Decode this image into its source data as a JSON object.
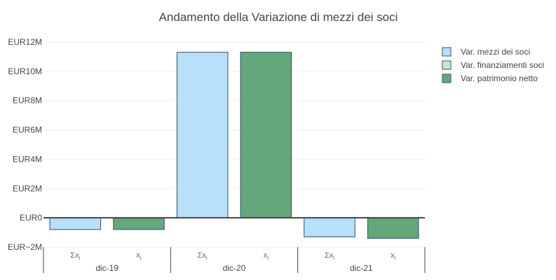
{
  "chart_data": {
    "type": "bar",
    "title": "Andamento della Variazione di mezzi dei soci",
    "ylim": [
      -2000000,
      12000000
    ],
    "yticks": [
      -2000000,
      0,
      2000000,
      4000000,
      6000000,
      8000000,
      10000000,
      12000000
    ],
    "ytick_labels": [
      "EUR−2M",
      "EUR0",
      "EUR2M",
      "EUR4M",
      "EUR6M",
      "EUR8M",
      "EUR10M",
      "EUR12M"
    ],
    "grid": true,
    "legend_position": "top-right",
    "groups": [
      {
        "label": "dic-19",
        "bars": [
          {
            "sub": "Σx",
            "sub_index": "i",
            "value": -800000,
            "series": 0
          },
          {
            "sub": "x",
            "sub_index": "i",
            "value": -800000,
            "series": 2
          }
        ]
      },
      {
        "label": "dic-20",
        "bars": [
          {
            "sub": "Σx",
            "sub_index": "i",
            "value": 11300000,
            "series": 0
          },
          {
            "sub": "x",
            "sub_index": "i",
            "value": 11300000,
            "series": 2
          }
        ]
      },
      {
        "label": "dic-21",
        "bars": [
          {
            "sub": "Σx",
            "sub_index": "i",
            "value": -1300000,
            "series": 0
          },
          {
            "sub": "x",
            "sub_index": "i",
            "value": -1400000,
            "series": 2
          }
        ]
      }
    ],
    "series": [
      {
        "name": "Var. mezzi dei soci",
        "color": "#b9e0fb",
        "stroke": "#2f4f6f"
      },
      {
        "name": "Var. finanziamenti soci",
        "color": "#c8e9c8",
        "stroke": "#2f4f6f"
      },
      {
        "name": "Var. patrimonio netto",
        "color": "#64a77a",
        "stroke": "#2f4f6f"
      }
    ]
  }
}
